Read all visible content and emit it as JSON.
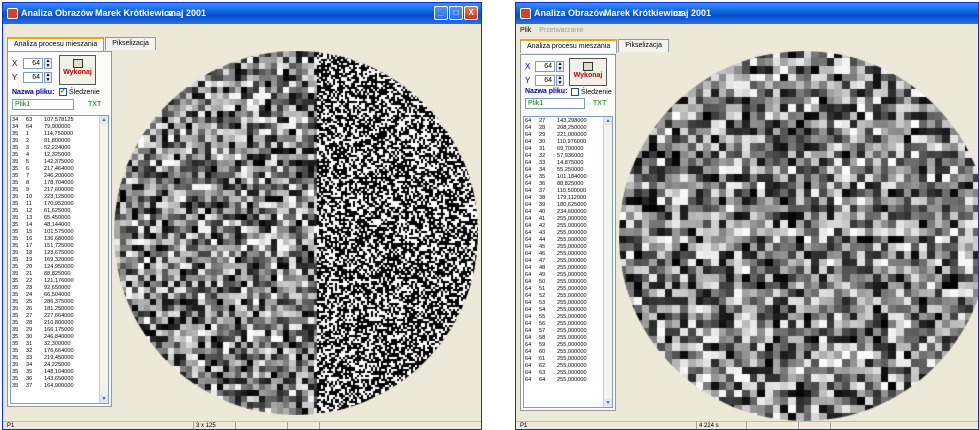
{
  "window1": {
    "title": "Analiza Obrazów",
    "author": "Marek Krótkiewicz",
    "date": "maj 2001",
    "tabs": [
      {
        "label": "Analiza procesu mieszania",
        "active": true
      },
      {
        "label": "Pikselizacja",
        "active": false
      }
    ],
    "controls": {
      "x_label": "X",
      "x_value": "64",
      "y_label": "Y",
      "y_value": "64",
      "execute_label": "Wykonaj",
      "tracking_label": "Śledzenie",
      "tracking_checked": true,
      "file_name_label": "Nazwa pliku:",
      "file_name_value": "Plik1",
      "txt_label": "TXT"
    },
    "list_rows": [
      [
        "34",
        "63",
        "107,578125"
      ],
      [
        "34",
        "64",
        "79,900000"
      ],
      [
        "35",
        "1",
        "114,750000"
      ],
      [
        "35",
        "2",
        "91,800000"
      ],
      [
        "35",
        "3",
        "52,224000"
      ],
      [
        "35",
        "4",
        "12,325000"
      ],
      [
        "35",
        "5",
        "142,375000"
      ],
      [
        "35",
        "6",
        "217,464000"
      ],
      [
        "35",
        "7",
        "246,200000"
      ],
      [
        "35",
        "8",
        "178,704000"
      ],
      [
        "35",
        "9",
        "217,600000"
      ],
      [
        "35",
        "10",
        "223,125000"
      ],
      [
        "35",
        "11",
        "170,952000"
      ],
      [
        "35",
        "12",
        "61,625000"
      ],
      [
        "35",
        "13",
        "65,450000"
      ],
      [
        "35",
        "14",
        "48,144000"
      ],
      [
        "35",
        "15",
        "101,575000"
      ],
      [
        "35",
        "16",
        "136,680000"
      ],
      [
        "35",
        "17",
        "151,725000"
      ],
      [
        "35",
        "18",
        "123,675000"
      ],
      [
        "35",
        "19",
        "169,320000"
      ],
      [
        "35",
        "20",
        "124,950000"
      ],
      [
        "35",
        "21",
        "88,825000"
      ],
      [
        "35",
        "22",
        "121,176000"
      ],
      [
        "35",
        "23",
        "92,650000"
      ],
      [
        "35",
        "24",
        "66,504000"
      ],
      [
        "35",
        "25",
        "286,375000"
      ],
      [
        "35",
        "26",
        "181,250000"
      ],
      [
        "35",
        "27",
        "227,664000"
      ],
      [
        "35",
        "28",
        "210,800000"
      ],
      [
        "35",
        "29",
        "166,175000"
      ],
      [
        "35",
        "30",
        "246,840000"
      ],
      [
        "35",
        "31",
        "32,300000"
      ],
      [
        "35",
        "32",
        "176,664000"
      ],
      [
        "35",
        "33",
        "219,450000"
      ],
      [
        "35",
        "34",
        "24,225000"
      ],
      [
        "35",
        "35",
        "148,104000"
      ],
      [
        "35",
        "36",
        "143,650000"
      ],
      [
        "35",
        "37",
        "164,900000"
      ]
    ],
    "status": {
      "left": "P1",
      "middle": "3 x 125"
    }
  },
  "window2": {
    "title": "Analiza Obrazów",
    "author": "Marek Krótkiewicz",
    "date": "maj 2001",
    "menu": [
      {
        "label": "Plik",
        "disabled": false
      },
      {
        "label": "Przetwarzanie",
        "disabled": true
      }
    ],
    "tabs": [
      {
        "label": "Analiza procesu mieszania",
        "active": true
      },
      {
        "label": "Pikselizacja",
        "active": false
      }
    ],
    "controls": {
      "x_label": "X",
      "x_value": "64",
      "y_label": "Y",
      "y_value": "64",
      "execute_label": "Wykonaj",
      "tracking_label": "Śledzenie",
      "tracking_checked": false,
      "file_name_label": "Nazwa pliku:",
      "file_name_value": "Plik1",
      "txt_label": "TXT"
    },
    "list_rows": [
      [
        "64",
        "27",
        "143,298000"
      ],
      [
        "64",
        "28",
        "208,250000"
      ],
      [
        "64",
        "29",
        "221,000000"
      ],
      [
        "64",
        "30",
        "110,976000"
      ],
      [
        "64",
        "31",
        "69,700000"
      ],
      [
        "64",
        "32",
        "57,936000"
      ],
      [
        "64",
        "33",
        "14,875000"
      ],
      [
        "64",
        "34",
        "55,250000"
      ],
      [
        "64",
        "35",
        "101,184000"
      ],
      [
        "64",
        "36",
        "88,825000"
      ],
      [
        "64",
        "37",
        "110,500000"
      ],
      [
        "64",
        "38",
        "179,112000"
      ],
      [
        "64",
        "39",
        "180,625000"
      ],
      [
        "64",
        "40",
        "234,600000"
      ],
      [
        "64",
        "41",
        "255,000000"
      ],
      [
        "64",
        "42",
        "255,000000"
      ],
      [
        "64",
        "43",
        "255,000000"
      ],
      [
        "64",
        "44",
        "255,000000"
      ],
      [
        "64",
        "45",
        "255,000000"
      ],
      [
        "64",
        "46",
        "255,000000"
      ],
      [
        "64",
        "47",
        "255,000000"
      ],
      [
        "64",
        "48",
        "255,000000"
      ],
      [
        "64",
        "49",
        "255,000000"
      ],
      [
        "64",
        "50",
        "255,000000"
      ],
      [
        "64",
        "51",
        "255,000000"
      ],
      [
        "64",
        "52",
        "255,000000"
      ],
      [
        "64",
        "53",
        "255,000000"
      ],
      [
        "64",
        "54",
        "255,000000"
      ],
      [
        "64",
        "55",
        "255,000000"
      ],
      [
        "64",
        "56",
        "255,000000"
      ],
      [
        "64",
        "57",
        "255,000000"
      ],
      [
        "64",
        "58",
        "255,000000"
      ],
      [
        "64",
        "59",
        "255,000000"
      ],
      [
        "64",
        "60",
        "255,000000"
      ],
      [
        "64",
        "61",
        "255,000000"
      ],
      [
        "64",
        "62",
        "255,000000"
      ],
      [
        "64",
        "63",
        "255,000000"
      ],
      [
        "64",
        "64",
        "255,000000"
      ]
    ],
    "status": {
      "left": "P1",
      "middle": "4 224 s"
    }
  },
  "colors": {
    "titlebar": "#0a5fd8",
    "accent_tab": "#ff9f00",
    "execute_text": "#c00000",
    "file_text": "#008000"
  }
}
